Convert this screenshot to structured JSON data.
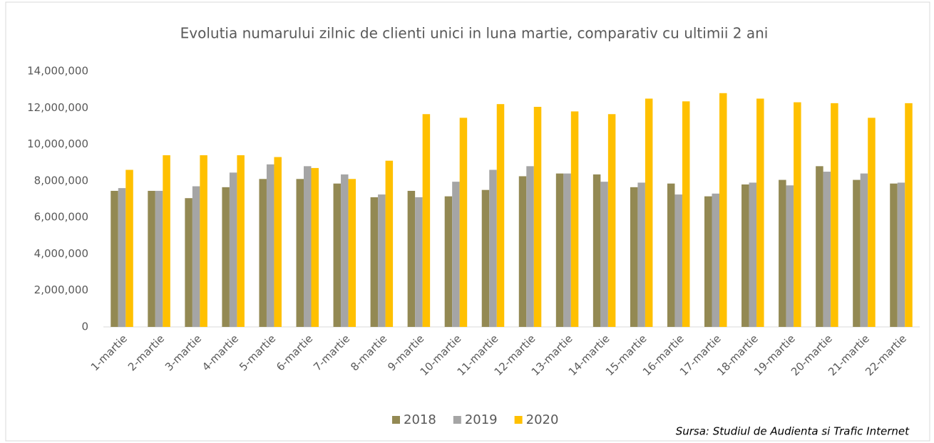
{
  "chart_data": {
    "type": "bar",
    "title": "Evolutia numarului zilnic de clienti unici in luna martie, comparativ cu ultimii 2 ani",
    "categories": [
      "1-martie",
      "2-martie",
      "3-martie",
      "4-martie",
      "5-martie",
      "6-martie",
      "7-martie",
      "8-martie",
      "9-martie",
      "10-martie",
      "11-martie",
      "12-martie",
      "13-martie",
      "14-martie",
      "15-martie",
      "16-martie",
      "17-martie",
      "18-martie",
      "19-martie",
      "20-martie",
      "21-martie",
      "22-martie"
    ],
    "series": [
      {
        "name": "2018",
        "color": "#938953",
        "values": [
          7450000,
          7450000,
          7050000,
          7650000,
          8100000,
          8100000,
          7850000,
          7100000,
          7450000,
          7150000,
          7500000,
          8250000,
          8400000,
          8350000,
          7650000,
          7850000,
          7150000,
          7800000,
          8050000,
          8800000,
          8050000,
          7850000
        ]
      },
      {
        "name": "2019",
        "color": "#a5a5a5",
        "values": [
          7600000,
          7450000,
          7700000,
          8450000,
          8900000,
          8800000,
          8350000,
          7250000,
          7100000,
          7950000,
          8600000,
          8800000,
          8400000,
          7950000,
          7900000,
          7250000,
          7300000,
          7900000,
          7750000,
          8500000,
          8400000,
          7900000
        ]
      },
      {
        "name": "2020",
        "color": "#ffc000",
        "values": [
          8600000,
          9400000,
          9400000,
          9400000,
          9300000,
          8700000,
          8100000,
          9100000,
          11650000,
          11450000,
          12200000,
          12050000,
          11800000,
          11650000,
          12500000,
          12350000,
          12800000,
          12500000,
          12300000,
          12250000,
          11450000,
          12250000
        ]
      }
    ],
    "ylim": [
      0,
      14000000
    ],
    "yticks": [
      0,
      {
        "value": 2000000,
        "label": "2,000,000"
      },
      {
        "value": 4000000,
        "label": "4,000,000"
      },
      {
        "value": 6000000,
        "label": "6,000,000"
      },
      {
        "value": 8000000,
        "label": "8,000,000"
      },
      {
        "value": 10000000,
        "label": "10,000,000"
      },
      {
        "value": 12000000,
        "label": "12,000,000"
      },
      {
        "value": 14000000,
        "label": "14,000,000"
      }
    ],
    "grid": false,
    "legend": "bottom",
    "source": "Sursa: Studiul de Audienta si Trafic Internet"
  }
}
